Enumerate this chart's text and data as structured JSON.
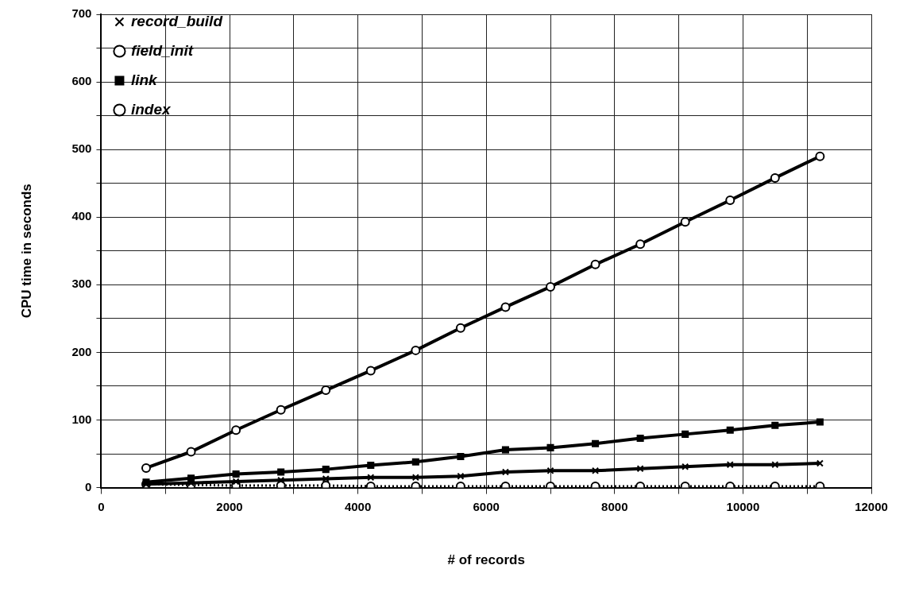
{
  "chart_data": {
    "type": "line",
    "xlabel": "# of records",
    "ylabel": "CPU time in seconds",
    "x": [
      700,
      1400,
      2100,
      2800,
      3500,
      4200,
      4900,
      5600,
      6300,
      7000,
      7700,
      8400,
      9100,
      9800,
      10500,
      11200
    ],
    "series": [
      {
        "name": "record_build",
        "color": "#000000",
        "marker": "cross",
        "line_style": "solid",
        "values": [
          5,
          7,
          9,
          11,
          13,
          15,
          15,
          17,
          23,
          25,
          25,
          28,
          31,
          34,
          34,
          36
        ]
      },
      {
        "name": "field_init",
        "color": "#000000",
        "marker": "circle",
        "line_style": "solid",
        "values": [
          29,
          53,
          85,
          115,
          144,
          173,
          203,
          236,
          267,
          297,
          330,
          360,
          393,
          425,
          458,
          490
        ]
      },
      {
        "name": "link",
        "color": "#000000",
        "marker": "square",
        "line_style": "solid",
        "values": [
          8,
          14,
          20,
          23,
          27,
          33,
          38,
          46,
          56,
          59,
          65,
          73,
          79,
          85,
          92,
          97
        ]
      },
      {
        "name": "index",
        "color": "#000000",
        "marker": "circle",
        "line_style": "dotted",
        "values": [
          5,
          4,
          3,
          3,
          3,
          2,
          2,
          2,
          2,
          2,
          2,
          2,
          2,
          2,
          2,
          2
        ]
      }
    ],
    "xlim": [
      0,
      12000
    ],
    "xticks": [
      0,
      {
        "value": 1000,
        "label": null
      },
      2000,
      {
        "value": 3000,
        "label": null
      },
      4000,
      {
        "value": 5000,
        "label": null
      },
      6000,
      {
        "value": 7000,
        "label": null
      },
      8000,
      {
        "value": 9000,
        "label": null
      },
      10000,
      {
        "value": 11000,
        "label": null
      },
      12000
    ],
    "ylim": [
      0,
      700
    ],
    "yticks": [
      0,
      {
        "value": 50,
        "label": null
      },
      100,
      {
        "value": 150,
        "label": null
      },
      200,
      {
        "value": 250,
        "label": null
      },
      300,
      {
        "value": 350,
        "label": null
      },
      400,
      {
        "value": 450,
        "label": null
      },
      500,
      {
        "value": 550,
        "label": null
      },
      600,
      {
        "value": 650,
        "label": null
      },
      700
    ],
    "grid": true,
    "legend": "top left"
  }
}
